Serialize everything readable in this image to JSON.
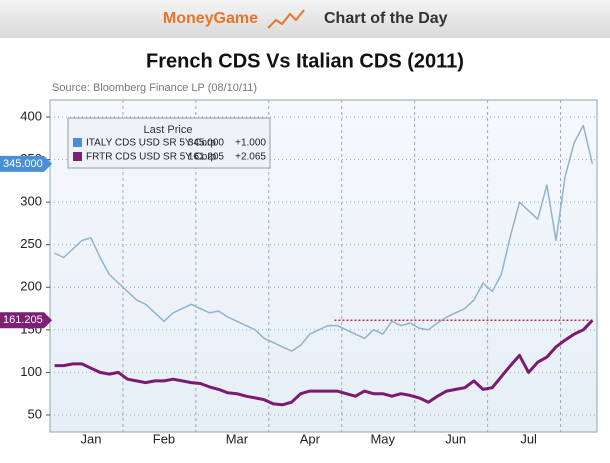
{
  "header": {
    "brand": "MoneyGame",
    "section": "Chart of the Day"
  },
  "chart_data": {
    "type": "line",
    "title": "French CDS Vs Italian CDS (2011)",
    "source": "Source: Bloomberg Finance LP (08/10/11)",
    "legend_title": "Last Price",
    "categories": [
      null,
      null,
      null,
      null,
      "Jan",
      null,
      null,
      null,
      null,
      null,
      null,
      null,
      "Feb",
      null,
      null,
      null,
      null,
      null,
      null,
      null,
      "Mar",
      null,
      null,
      null,
      null,
      null,
      null,
      null,
      "Apr",
      null,
      null,
      null,
      null,
      null,
      null,
      null,
      "May",
      null,
      null,
      null,
      null,
      null,
      null,
      null,
      "Jun",
      null,
      null,
      null,
      null,
      null,
      null,
      null,
      "Jul",
      null,
      null,
      null,
      null,
      null,
      null,
      null
    ],
    "series": [
      {
        "name": "ITALY CDS USD SR 5Y Corp",
        "last_price": "345.000",
        "change": "+1.000",
        "color": "#93b3ca",
        "legend_color": "#4a8fd6",
        "values": [
          240,
          235,
          245,
          255,
          258,
          235,
          215,
          205,
          195,
          185,
          180,
          170,
          160,
          170,
          175,
          180,
          175,
          170,
          172,
          165,
          160,
          155,
          150,
          140,
          135,
          130,
          125,
          132,
          145,
          150,
          155,
          155,
          150,
          145,
          140,
          150,
          145,
          160,
          155,
          158,
          152,
          150,
          158,
          165,
          170,
          175,
          185,
          205,
          195,
          215,
          260,
          300,
          290,
          280,
          320,
          255,
          330,
          370,
          390,
          345
        ]
      },
      {
        "name": "FRTR CDS USD SR 5Y Corp",
        "last_price": "161.205",
        "change": "+2.065",
        "color": "#7a1a70",
        "legend_color": "#7d1f75",
        "values": [
          108,
          108,
          110,
          110,
          105,
          100,
          98,
          100,
          92,
          90,
          88,
          90,
          90,
          92,
          90,
          88,
          87,
          83,
          80,
          76,
          75,
          72,
          70,
          68,
          63,
          62,
          65,
          75,
          78,
          78,
          78,
          78,
          75,
          72,
          78,
          75,
          75,
          72,
          75,
          73,
          70,
          65,
          72,
          78,
          80,
          82,
          90,
          80,
          82,
          95,
          108,
          120,
          100,
          112,
          118,
          130,
          138,
          145,
          150,
          161.205
        ]
      }
    ],
    "reference_line": 161.205,
    "ylim": [
      30,
      420
    ],
    "yticks": [
      50,
      100,
      150,
      200,
      250,
      300,
      350,
      400
    ],
    "grid": true
  }
}
